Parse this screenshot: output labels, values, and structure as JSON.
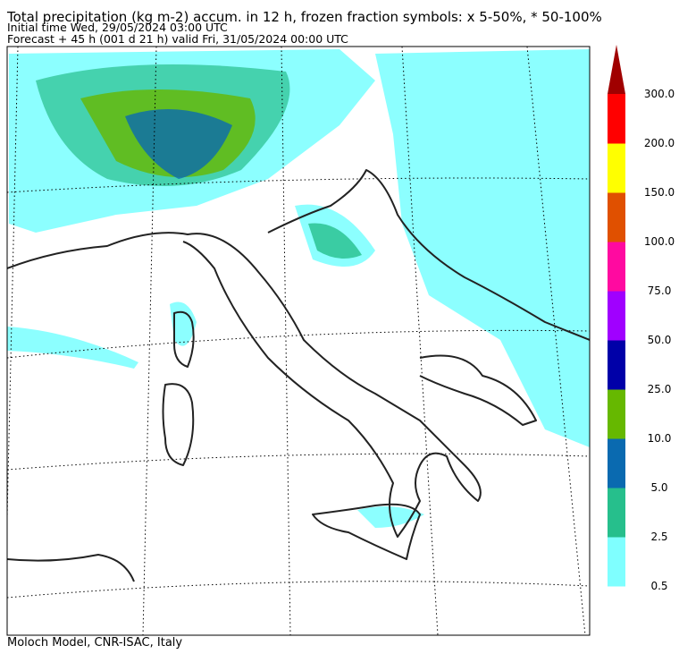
{
  "header": {
    "title": "Total precipitation (kg m-2) accum. in 12 h, frozen fraction symbols: x 5-50%, * 50-100%",
    "initial_time": "Initial time  Wed, 29/05/2024  03:00 UTC",
    "forecast": "Forecast  +  45 h  (001 d 21 h)  valid Fri, 31/05/2024 00:00 UTC"
  },
  "colorbar": {
    "levels": [
      0.5,
      2.5,
      {
        "value": 5,
        "label": "5.0"
      },
      {
        "value": 10,
        "label": "10.0"
      },
      {
        "value": 25,
        "label": "25.0"
      },
      {
        "value": 50,
        "label": "50.0"
      },
      {
        "value": 75,
        "label": "75.0"
      },
      {
        "value": 100,
        "label": "100.0"
      },
      {
        "value": 150,
        "label": "150.0"
      },
      {
        "value": 200,
        "label": "200.0"
      },
      {
        "value": 300,
        "label": "300.0"
      }
    ],
    "colors": [
      "#7fffff",
      "#26bf8c",
      "#0a6ab0",
      "#66b800",
      "#0000a8",
      "#a000ff",
      "#ff0aa0",
      "#e05000",
      "#ffff00",
      "#ff0000"
    ],
    "extend_color": "#a00000"
  },
  "footer": "Moloch Model, CNR-ISAC, Italy"
}
